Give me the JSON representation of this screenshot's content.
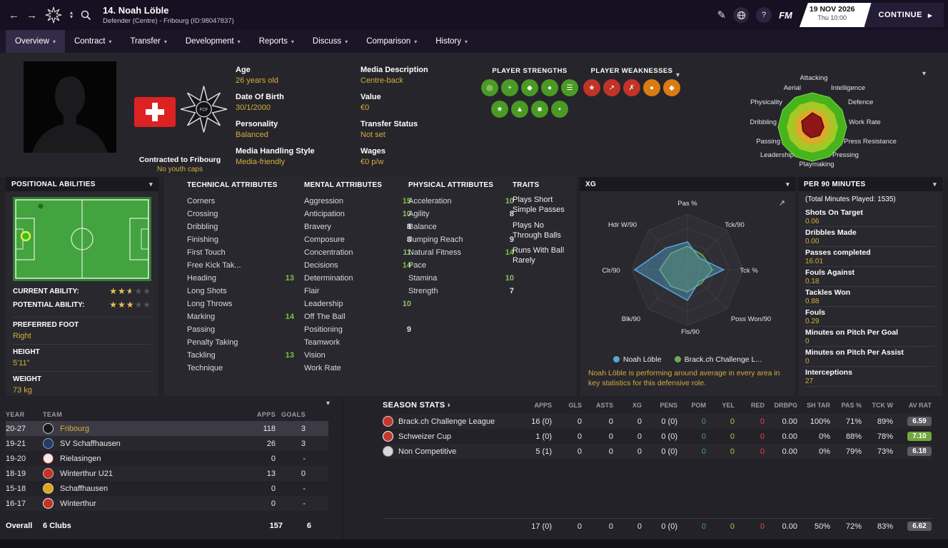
{
  "header": {
    "title": "14. Noah Löble",
    "subtitle": "Defender (Centre) - Fribourg (ID:98047837)",
    "date": "19 NOV 2026",
    "time": "Thu 10:00",
    "continue_label": "CONTINUE",
    "fm_label": "FM"
  },
  "tabs": [
    {
      "label": "Overview",
      "cls": "active"
    },
    {
      "label": "Contract",
      "cls": ""
    },
    {
      "label": "Transfer",
      "cls": ""
    },
    {
      "label": "Development",
      "cls": ""
    },
    {
      "label": "Reports",
      "cls": ""
    },
    {
      "label": "Discuss",
      "cls": ""
    },
    {
      "label": "Comparison",
      "cls": ""
    },
    {
      "label": "History",
      "cls": ""
    }
  ],
  "profile": {
    "contracted": "Contracted to Fribourg",
    "youth_caps": "No youth caps",
    "fields_left": [
      {
        "label": "Age",
        "value": "26 years old"
      },
      {
        "label": "Date Of Birth",
        "value": "30/1/2000"
      },
      {
        "label": "Personality",
        "value": "Balanced"
      },
      {
        "label": "Media Handling Style",
        "value": "Media-friendly"
      }
    ],
    "fields_right": [
      {
        "label": "Media Description",
        "value": "Centre-back"
      },
      {
        "label": "Value",
        "value": "€0"
      },
      {
        "label": "Transfer Status",
        "value": "Not set"
      },
      {
        "label": "Wages",
        "value": "€0 p/w"
      }
    ],
    "strengths_label": "PLAYER STRENGTHS",
    "weaknesses_label": "PLAYER WEAKNESSES",
    "strengths_row1": [
      {
        "glyph": "◎",
        "cls": "g"
      },
      {
        "glyph": "+",
        "cls": "g"
      },
      {
        "glyph": "◆",
        "cls": "g"
      },
      {
        "glyph": "●",
        "cls": "g"
      },
      {
        "glyph": "☰",
        "cls": "g"
      }
    ],
    "strengths_row2": [
      {
        "glyph": "★",
        "cls": "g"
      },
      {
        "glyph": "▲",
        "cls": "g"
      },
      {
        "glyph": "■",
        "cls": "g"
      },
      {
        "glyph": "▪",
        "cls": "g"
      }
    ],
    "weaknesses_row": [
      {
        "glyph": "★",
        "cls": "r"
      },
      {
        "glyph": "↗",
        "cls": "r"
      },
      {
        "glyph": "✗",
        "cls": "r"
      },
      {
        "glyph": "●",
        "cls": "o"
      },
      {
        "glyph": "◆",
        "cls": "o"
      }
    ]
  },
  "radar": {
    "labels": [
      "Attacking",
      "Intelligence",
      "Defence",
      "Work Rate",
      "Press Resistance",
      "Pressing",
      "Playmaking",
      "Leadership",
      "Passing",
      "Dribbling",
      "Physicality",
      "Aerial"
    ]
  },
  "positional": {
    "header": "POSITIONAL ABILITIES",
    "current_label": "CURRENT ABILITY:",
    "current_stars": 2.5,
    "potential_label": "POTENTIAL ABILITY:",
    "potential_stars": 3,
    "foot_label": "PREFERRED FOOT",
    "foot": "Right",
    "height_label": "HEIGHT",
    "height": "5'11\"",
    "weight_label": "WEIGHT",
    "weight": "73 kg"
  },
  "attributes": {
    "technical_header": "TECHNICAL ATTRIBUTES",
    "mental_header": "MENTAL ATTRIBUTES",
    "physical_header": "PHYSICAL ATTRIBUTES",
    "technical": [
      {
        "label": "Corners",
        "value": "",
        "vclass": ""
      },
      {
        "label": "Crossing",
        "value": "",
        "vclass": ""
      },
      {
        "label": "Dribbling",
        "value": "",
        "vclass": ""
      },
      {
        "label": "Finishing",
        "value": "",
        "vclass": ""
      },
      {
        "label": "First Touch",
        "value": "",
        "vclass": ""
      },
      {
        "label": "Free Kick Tak...",
        "value": "",
        "vclass": ""
      },
      {
        "label": "Heading",
        "value": "13",
        "vclass": "high"
      },
      {
        "label": "Long Shots",
        "value": "",
        "vclass": ""
      },
      {
        "label": "Long Throws",
        "value": "",
        "vclass": ""
      },
      {
        "label": "Marking",
        "value": "14",
        "vclass": "high"
      },
      {
        "label": "Passing",
        "value": "",
        "vclass": ""
      },
      {
        "label": "Penalty Taking",
        "value": "",
        "vclass": ""
      },
      {
        "label": "Tackling",
        "value": "13",
        "vclass": "high"
      },
      {
        "label": "Technique",
        "value": "",
        "vclass": ""
      }
    ],
    "mental": [
      {
        "label": "Aggression",
        "value": "15",
        "vclass": "high"
      },
      {
        "label": "Anticipation",
        "value": "10",
        "vclass": "mid"
      },
      {
        "label": "Bravery",
        "value": "8",
        "vclass": "low"
      },
      {
        "label": "Composure",
        "value": "8",
        "vclass": "low"
      },
      {
        "label": "Concentration",
        "value": "11",
        "vclass": "mid"
      },
      {
        "label": "Decisions",
        "value": "14",
        "vclass": "high"
      },
      {
        "label": "Determination",
        "value": "",
        "vclass": ""
      },
      {
        "label": "Flair",
        "value": "",
        "vclass": ""
      },
      {
        "label": "Leadership",
        "value": "10",
        "vclass": "mid"
      },
      {
        "label": "Off The Ball",
        "value": "",
        "vclass": ""
      },
      {
        "label": "Positioning",
        "value": "9",
        "vclass": "low"
      },
      {
        "label": "Teamwork",
        "value": "",
        "vclass": ""
      },
      {
        "label": "Vision",
        "value": "",
        "vclass": ""
      },
      {
        "label": "Work Rate",
        "value": "",
        "vclass": ""
      }
    ],
    "physical": [
      {
        "label": "Acceleration",
        "value": "10",
        "vclass": "mid"
      },
      {
        "label": "Agility",
        "value": "8",
        "vclass": "low"
      },
      {
        "label": "Balance",
        "value": "",
        "vclass": ""
      },
      {
        "label": "Jumping Reach",
        "value": "9",
        "vclass": "low"
      },
      {
        "label": "Natural Fitness",
        "value": "14",
        "vclass": "high"
      },
      {
        "label": "Pace",
        "value": "",
        "vclass": ""
      },
      {
        "label": "Stamina",
        "value": "10",
        "vclass": "mid"
      },
      {
        "label": "Strength",
        "value": "7",
        "vclass": "low"
      }
    ]
  },
  "traits": {
    "header": "TRAITS",
    "items": [
      "Plays Short Simple Passes",
      "Plays No Through Balls",
      "Runs With Ball Rarely"
    ]
  },
  "xg": {
    "header": "XG",
    "axes": [
      "Pas %",
      "Tck/90",
      "Tck %",
      "Poss Won/90",
      "Fls/90",
      "Blk/90",
      "Clr/90",
      "Hdr W/90"
    ],
    "legend": [
      {
        "label": "Noah Löble",
        "color": "#56a8d8"
      },
      {
        "label": "Brack.ch Challenge L...",
        "color": "#6fae4e"
      }
    ],
    "note": "Noah Löble is performing around average in every area in key statistics for this defensive role."
  },
  "per90": {
    "header": "PER 90 MINUTES",
    "subtitle": "(Total Minutes Played: 1535)",
    "stats": [
      {
        "label": "Shots On Target",
        "value": "0.06"
      },
      {
        "label": "Dribbles Made",
        "value": "0.00"
      },
      {
        "label": "Passes completed",
        "value": "16.01"
      },
      {
        "label": "Fouls Against",
        "value": "0.18"
      },
      {
        "label": "Tackles Won",
        "value": "0.88"
      },
      {
        "label": "Fouls",
        "value": "0.29"
      },
      {
        "label": "Minutes on Pitch Per Goal",
        "value": "0"
      },
      {
        "label": "Minutes on Pitch Per Assist",
        "value": "0"
      },
      {
        "label": "Interceptions",
        "value": "27"
      }
    ]
  },
  "career": {
    "columns": [
      "YEAR",
      "TEAM",
      "APPS",
      "GOALS"
    ],
    "rows": [
      {
        "year": "20-27",
        "team": "Fribourg",
        "apps": "118",
        "goals": "3",
        "cls": "current",
        "badge": "b-frib"
      },
      {
        "year": "19-21",
        "team": "SV Schaffhausen",
        "apps": "26",
        "goals": "3",
        "cls": "",
        "badge": "b-svs"
      },
      {
        "year": "19-20",
        "team": "Rielasingen",
        "apps": "0",
        "goals": "-",
        "cls": "",
        "badge": "b-riel"
      },
      {
        "year": "18-19",
        "team": "Winterthur U21",
        "apps": "13",
        "goals": "0",
        "cls": "",
        "badge": "b-w21"
      },
      {
        "year": "15-18",
        "team": "Schaffhausen",
        "apps": "0",
        "goals": "-",
        "cls": "",
        "badge": "b-scha"
      },
      {
        "year": "16-17",
        "team": "Winterthur",
        "apps": "0",
        "goals": "-",
        "cls": "",
        "badge": "b-wint"
      }
    ],
    "overall": {
      "year": "Overall",
      "team": "6 Clubs",
      "apps": "157",
      "goals": "6"
    }
  },
  "season": {
    "title": "SEASON STATS ›",
    "columns": [
      "APPS",
      "GLS",
      "ASTS",
      "XG",
      "PENS",
      "POM",
      "YEL",
      "RED",
      "DRBPG",
      "SH TAR",
      "PAS %",
      "TCK W",
      "AV RAT"
    ],
    "rows": [
      {
        "name": "Brack.ch Challenge League",
        "badge": "cb-brack",
        "values": [
          "16 (0)",
          "0",
          "0",
          "0",
          "0 (0)",
          "0",
          "0",
          "0",
          "0.00",
          "100%",
          "71%",
          "89%"
        ],
        "rating": "6.59",
        "rcls": "rg"
      },
      {
        "name": "Schweizer Cup",
        "badge": "cb-cup",
        "values": [
          "1 (0)",
          "0",
          "0",
          "0",
          "0 (0)",
          "0",
          "0",
          "0",
          "0.00",
          "0%",
          "88%",
          "78%"
        ],
        "rating": "7.10",
        "rcls": "rgn"
      },
      {
        "name": "Non Competitive",
        "badge": "cb-non",
        "values": [
          "5 (1)",
          "0",
          "0",
          "0",
          "0 (0)",
          "0",
          "0",
          "0",
          "0.00",
          "0%",
          "79%",
          "73%"
        ],
        "rating": "6.18",
        "rcls": "rg"
      }
    ],
    "total": {
      "values": [
        "17 (0)",
        "0",
        "0",
        "0",
        "0 (0)",
        "0",
        "0",
        "0",
        "0.00",
        "50%",
        "72%",
        "83%"
      ],
      "rating": "6.62",
      "rcls": "rg"
    }
  }
}
